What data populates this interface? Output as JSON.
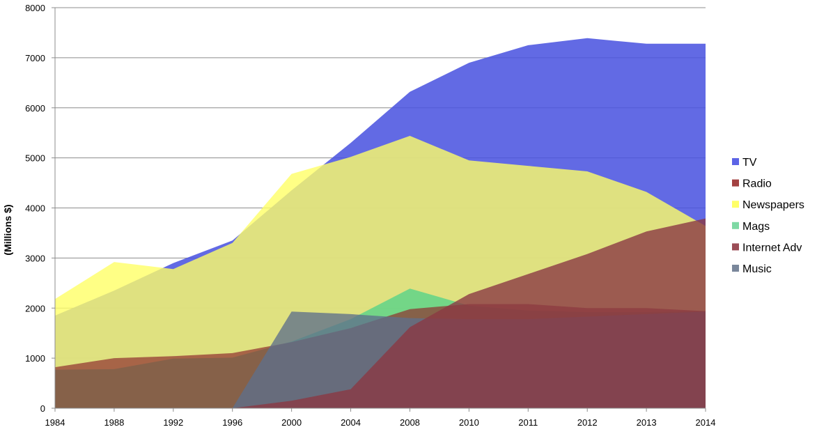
{
  "chart_data": {
    "type": "area",
    "ylabel": "(Millions $)",
    "xlabel": "",
    "ylim": [
      0,
      8000
    ],
    "ytick_step": 1000,
    "grid": true,
    "legend": "right",
    "categories": [
      "1984",
      "1988",
      "1992",
      "1996",
      "2000",
      "2004",
      "2008",
      "2010",
      "2011",
      "2012",
      "2013",
      "2014"
    ],
    "y_tick_labels": [
      "0",
      "1000",
      "2000",
      "3000",
      "4000",
      "5000",
      "6000",
      "7000",
      "8000"
    ],
    "series": [
      {
        "name": "TV",
        "color": "#4b54e0",
        "opacity": 0.87,
        "values": [
          1850,
          2350,
          2900,
          3350,
          4350,
          5300,
          6320,
          6900,
          7250,
          7390,
          7280,
          7280
        ]
      },
      {
        "name": "Newspapers",
        "color": "#ffff66",
        "opacity": 0.8,
        "values": [
          2180,
          2920,
          2780,
          3300,
          4680,
          5020,
          5440,
          4950,
          4840,
          4730,
          4320,
          3640
        ]
      },
      {
        "name": "Mags",
        "color": "#4fd18a",
        "opacity": 0.75,
        "values": [
          770,
          780,
          990,
          1010,
          1330,
          1780,
          2390,
          2050,
          1950,
          1920,
          1920,
          1940
        ]
      },
      {
        "name": "Radio",
        "color": "#8e2f2f",
        "opacity": 0.7,
        "values": [
          820,
          1000,
          1040,
          1100,
          1320,
          1600,
          1980,
          2080,
          2080,
          2000,
          2000,
          1940
        ]
      },
      {
        "name": "Music",
        "color": "#5f6f8a",
        "opacity": 0.78,
        "values": [
          0,
          0,
          0,
          0,
          1930,
          1880,
          1800,
          1780,
          1780,
          1830,
          1880,
          1930
        ]
      },
      {
        "name": "Internet Adv",
        "color": "#8b3a44",
        "opacity": 0.8,
        "values": [
          0,
          0,
          0,
          0,
          150,
          380,
          1620,
          2280,
          2680,
          3080,
          3530,
          3790
        ]
      }
    ]
  },
  "legend_items": [
    {
      "label": "TV",
      "color": "#5c64e6"
    },
    {
      "label": "Radio",
      "color": "#a34141"
    },
    {
      "label": "Newspapers",
      "color": "#ffff66"
    },
    {
      "label": "Mags",
      "color": "#7ed9a4"
    },
    {
      "label": "Internet Adv",
      "color": "#9b4d56"
    },
    {
      "label": "Music",
      "color": "#7a879b"
    }
  ]
}
